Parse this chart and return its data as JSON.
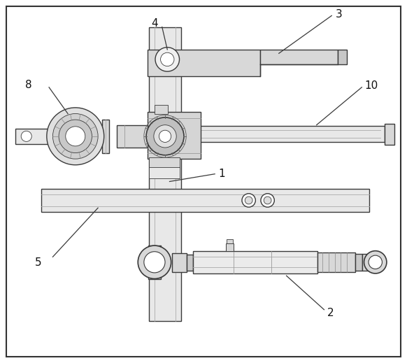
{
  "bg_color": "#ffffff",
  "lc": "#3a3a3a",
  "lw": 1.0,
  "tlw": 0.6,
  "fill_light": "#e8e8e8",
  "fill_mid": "#d8d8d8",
  "fill_dark": "#c8c8c8",
  "fs": 10
}
